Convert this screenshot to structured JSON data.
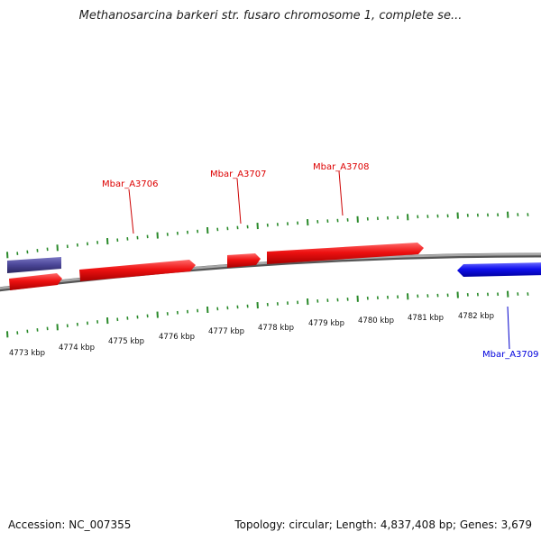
{
  "title": "Methanosarcina barkeri str. fusaro chromosome 1, complete se...",
  "footer": {
    "accession": "Accession: NC_007355",
    "summary": "Topology: circular; Length: 4,837,408 bp; Genes: 3,679"
  },
  "colors": {
    "forward_gene": "#ee1111",
    "reverse_gene": "#1111ee",
    "other_feature": "#4a4596",
    "ticks": "#2a8a2a",
    "backbone": "#888888"
  },
  "scale_labels": [
    "4773 kbp",
    "4774 kbp",
    "4775 kbp",
    "4776 kbp",
    "4777 kbp",
    "4778 kbp",
    "4779 kbp",
    "4780 kbp",
    "4781 kbp",
    "4782 kbp"
  ],
  "gene_labels": [
    {
      "name": "Mbar_A3706",
      "strand": "forward"
    },
    {
      "name": "Mbar_A3707",
      "strand": "forward"
    },
    {
      "name": "Mbar_A3708",
      "strand": "forward"
    },
    {
      "name": "Mbar_A3709",
      "strand": "reverse"
    }
  ]
}
